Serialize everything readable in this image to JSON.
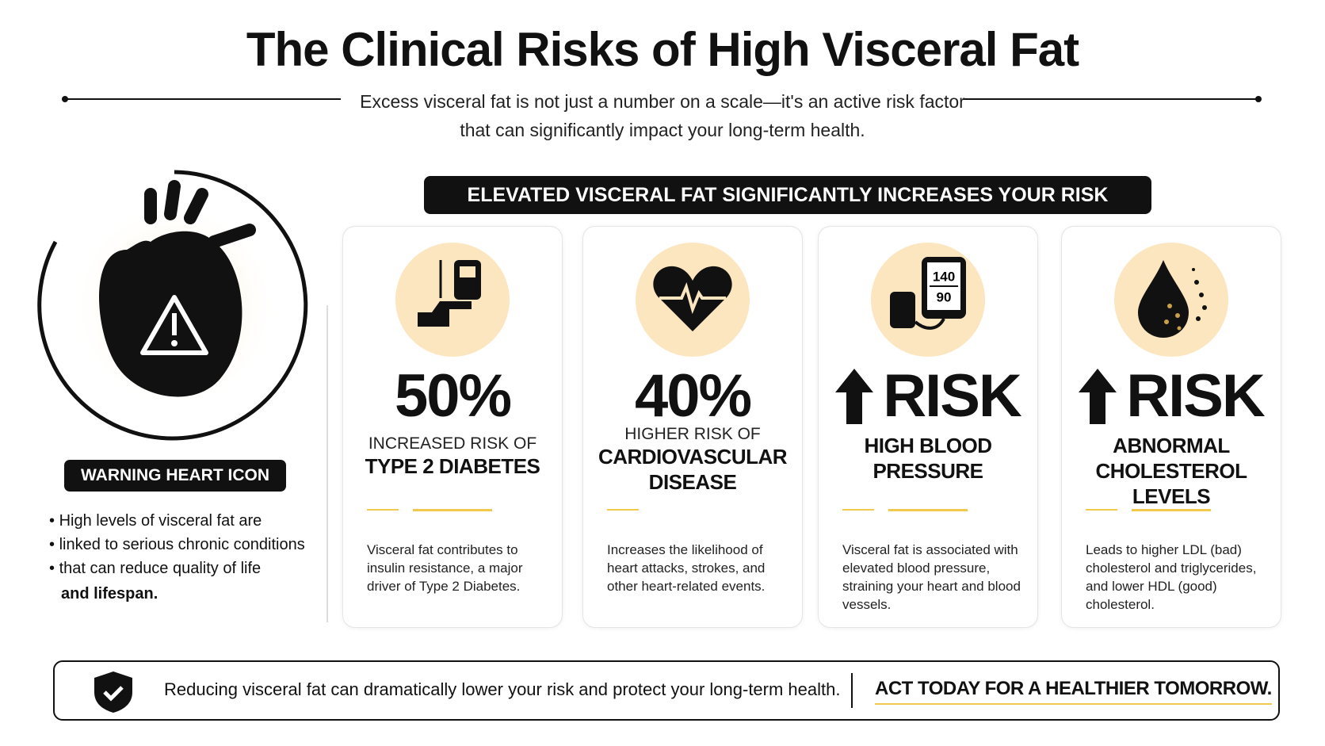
{
  "header": {
    "title": "The Clinical Risks of High Visceral Fat",
    "subtitle_lines": [
      "Excess visceral fat is not just a number on a scale—it's an active risk factor",
      "that can significantly impact your long-term health."
    ]
  },
  "banner": "ELEVATED VISCERAL FAT SIGNIFICANTLY INCREASES YOUR RISK",
  "sidebar": {
    "label": "WARNING HEART ICON",
    "lines": [
      "High levels of visceral fat are",
      "linked to serious chronic conditions",
      "that can reduce quality of life",
      "and lifespan."
    ]
  },
  "cards": [
    {
      "stat": "50%",
      "lead": "INCREASED RISK OF",
      "label": "TYPE 2 DIABETES",
      "description": "Visceral fat contributes to insulin resistance, a major driver of Type 2 Diabetes."
    },
    {
      "stat": "40%",
      "lead": "HIGHER RISK OF",
      "label": "CARDIOVASCULAR DISEASE",
      "description": "Increases the likelihood of heart attacks, strokes, and other heart-related events."
    },
    {
      "stat": "RISK",
      "label": "HIGH BLOOD PRESSURE",
      "icon_text": [
        "140",
        "90"
      ],
      "description": "Visceral fat is associated with elevated blood pressure, straining your heart and blood vessels."
    },
    {
      "stat": "RISK",
      "label": "ABNORMAL CHOLESTEROL LEVELS",
      "description": "Leads to higher LDL (bad) cholesterol and triglycerides, and lower HDL (good) cholesterol."
    }
  ],
  "footer": {
    "message": "Reducing visceral fat can dramatically lower your risk and protect your long-term health.",
    "cta": "ACT TODAY FOR A HEALTHIER TOMORROW."
  }
}
